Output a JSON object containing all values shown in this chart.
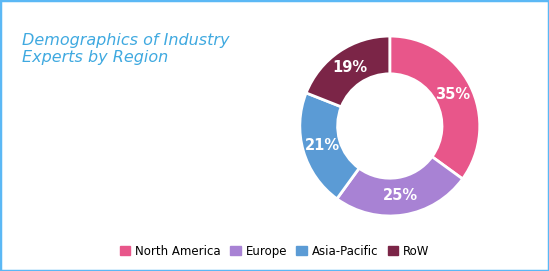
{
  "title": "Demographics of Industry\nExperts by Region",
  "title_color": "#3FA9E0",
  "title_fontsize": 11.5,
  "labels": [
    "North America",
    "Europe",
    "Asia-Pacific",
    "RoW"
  ],
  "values": [
    35,
    25,
    21,
    19
  ],
  "colors": [
    "#E8568A",
    "#A882D4",
    "#5B9BD5",
    "#7B2547"
  ],
  "pct_labels": [
    "35%",
    "25%",
    "21%",
    "19%"
  ],
  "background_color": "#FFFFFF",
  "border_color": "#5BB8F5",
  "legend_fontsize": 8.5
}
